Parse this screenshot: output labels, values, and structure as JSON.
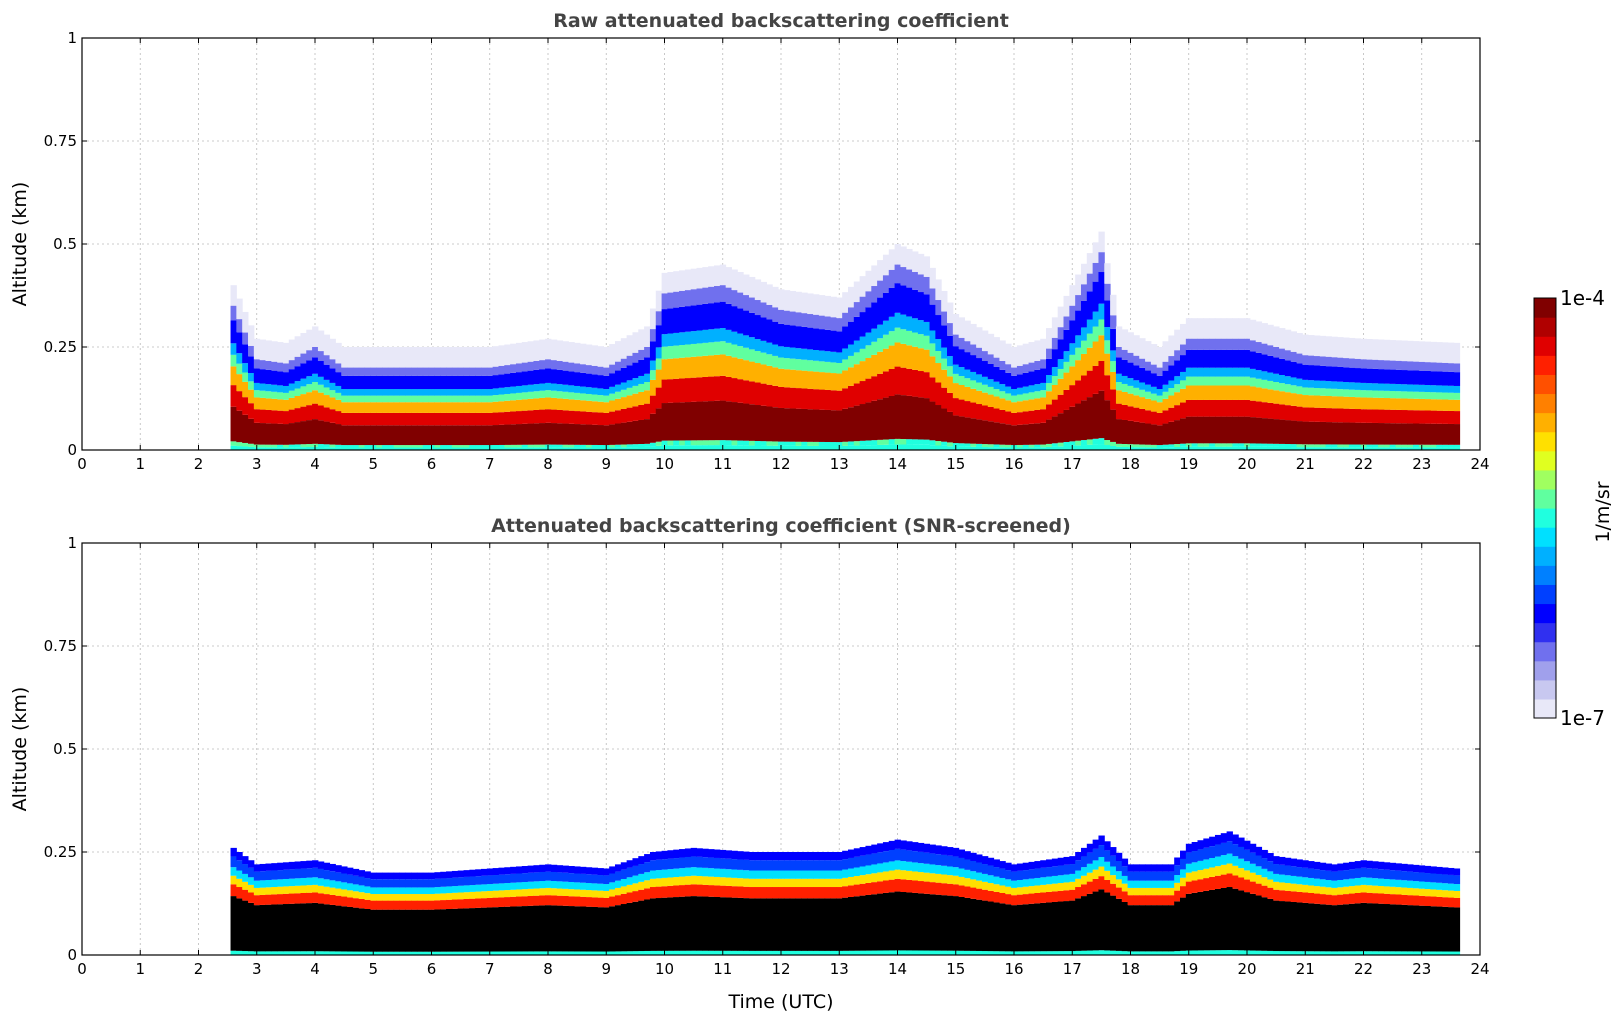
{
  "chart_data": [
    {
      "type": "heatmap",
      "title": "Raw attenuated backscattering coefficient",
      "xlabel": "",
      "ylabel": "Altitude (km)",
      "xlim": [
        0,
        24
      ],
      "ylim": [
        0,
        1
      ],
      "x_ticks": [
        "0",
        "1",
        "2",
        "3",
        "4",
        "5",
        "6",
        "7",
        "8",
        "9",
        "10",
        "11",
        "12",
        "13",
        "14",
        "15",
        "16",
        "17",
        "18",
        "19",
        "20",
        "21",
        "22",
        "23",
        "24"
      ],
      "y_ticks": [
        "0",
        "0.25",
        "0.5",
        "0.75",
        "1"
      ],
      "grid": true,
      "data_start_hour": 2.55,
      "data_end_hour": 23.65,
      "profiles": [
        {
          "t": 2.6,
          "top": 0.35
        },
        {
          "t": 3.0,
          "top": 0.22
        },
        {
          "t": 3.5,
          "top": 0.21
        },
        {
          "t": 4.0,
          "top": 0.25
        },
        {
          "t": 4.5,
          "top": 0.2
        },
        {
          "t": 5.5,
          "top": 0.2
        },
        {
          "t": 6.3,
          "top": 0.2
        },
        {
          "t": 7.0,
          "top": 0.2
        },
        {
          "t": 8.0,
          "top": 0.22
        },
        {
          "t": 9.0,
          "top": 0.2
        },
        {
          "t": 9.7,
          "top": 0.25
        },
        {
          "t": 10.0,
          "top": 0.38
        },
        {
          "t": 11.0,
          "top": 0.4
        },
        {
          "t": 12.0,
          "top": 0.34
        },
        {
          "t": 13.0,
          "top": 0.32
        },
        {
          "t": 14.0,
          "top": 0.45
        },
        {
          "t": 14.5,
          "top": 0.42
        },
        {
          "t": 15.0,
          "top": 0.28
        },
        {
          "t": 16.0,
          "top": 0.2
        },
        {
          "t": 16.5,
          "top": 0.22
        },
        {
          "t": 17.0,
          "top": 0.35
        },
        {
          "t": 17.5,
          "top": 0.48
        },
        {
          "t": 17.8,
          "top": 0.25
        },
        {
          "t": 18.5,
          "top": 0.2
        },
        {
          "t": 19.0,
          "top": 0.27
        },
        {
          "t": 20.0,
          "top": 0.27
        },
        {
          "t": 21.0,
          "top": 0.23
        },
        {
          "t": 22.0,
          "top": 0.22
        },
        {
          "t": 23.6,
          "top": 0.21
        }
      ]
    },
    {
      "type": "heatmap",
      "title": "Attenuated backscattering coefficient (SNR-screened)",
      "xlabel": "Time (UTC)",
      "ylabel": "Altitude (km)",
      "xlim": [
        0,
        24
      ],
      "ylim": [
        0,
        1
      ],
      "x_ticks": [
        "0",
        "1",
        "2",
        "3",
        "4",
        "5",
        "6",
        "7",
        "8",
        "9",
        "10",
        "11",
        "12",
        "13",
        "14",
        "15",
        "16",
        "17",
        "18",
        "19",
        "20",
        "21",
        "22",
        "23",
        "24"
      ],
      "y_ticks": [
        "0",
        "0.25",
        "0.5",
        "0.75",
        "1"
      ],
      "grid": true,
      "data_start_hour": 2.55,
      "data_end_hour": 23.65,
      "profiles": [
        {
          "t": 2.6,
          "top": 0.26
        },
        {
          "t": 3.0,
          "top": 0.22
        },
        {
          "t": 4.0,
          "top": 0.23
        },
        {
          "t": 5.0,
          "top": 0.2
        },
        {
          "t": 6.0,
          "top": 0.2
        },
        {
          "t": 7.0,
          "top": 0.21
        },
        {
          "t": 8.0,
          "top": 0.22
        },
        {
          "t": 9.0,
          "top": 0.21
        },
        {
          "t": 9.8,
          "top": 0.25
        },
        {
          "t": 10.5,
          "top": 0.26
        },
        {
          "t": 11.5,
          "top": 0.25
        },
        {
          "t": 13.0,
          "top": 0.25
        },
        {
          "t": 14.0,
          "top": 0.28
        },
        {
          "t": 15.0,
          "top": 0.26
        },
        {
          "t": 16.0,
          "top": 0.22
        },
        {
          "t": 17.0,
          "top": 0.24
        },
        {
          "t": 17.5,
          "top": 0.29
        },
        {
          "t": 18.0,
          "top": 0.22
        },
        {
          "t": 18.7,
          "top": 0.22
        },
        {
          "t": 19.0,
          "top": 0.27
        },
        {
          "t": 19.7,
          "top": 0.3
        },
        {
          "t": 20.5,
          "top": 0.24
        },
        {
          "t": 21.5,
          "top": 0.22
        },
        {
          "t": 22.0,
          "top": 0.23
        },
        {
          "t": 23.6,
          "top": 0.21
        }
      ]
    }
  ],
  "colorbar": {
    "label": "1/m/sr",
    "max_label": "1e-4",
    "min_label": "1e-7",
    "colors": [
      "#e8e8f8",
      "#c8c8f0",
      "#a0a0ec",
      "#7070ee",
      "#3030f0",
      "#0000ff",
      "#0040ff",
      "#0080ff",
      "#00b0ff",
      "#00e0ff",
      "#20ffdf",
      "#60ff9f",
      "#a0ff60",
      "#e0ff20",
      "#ffe000",
      "#ffb000",
      "#ff8000",
      "#ff5000",
      "#ff2000",
      "#e00000",
      "#b00000",
      "#800000"
    ]
  }
}
